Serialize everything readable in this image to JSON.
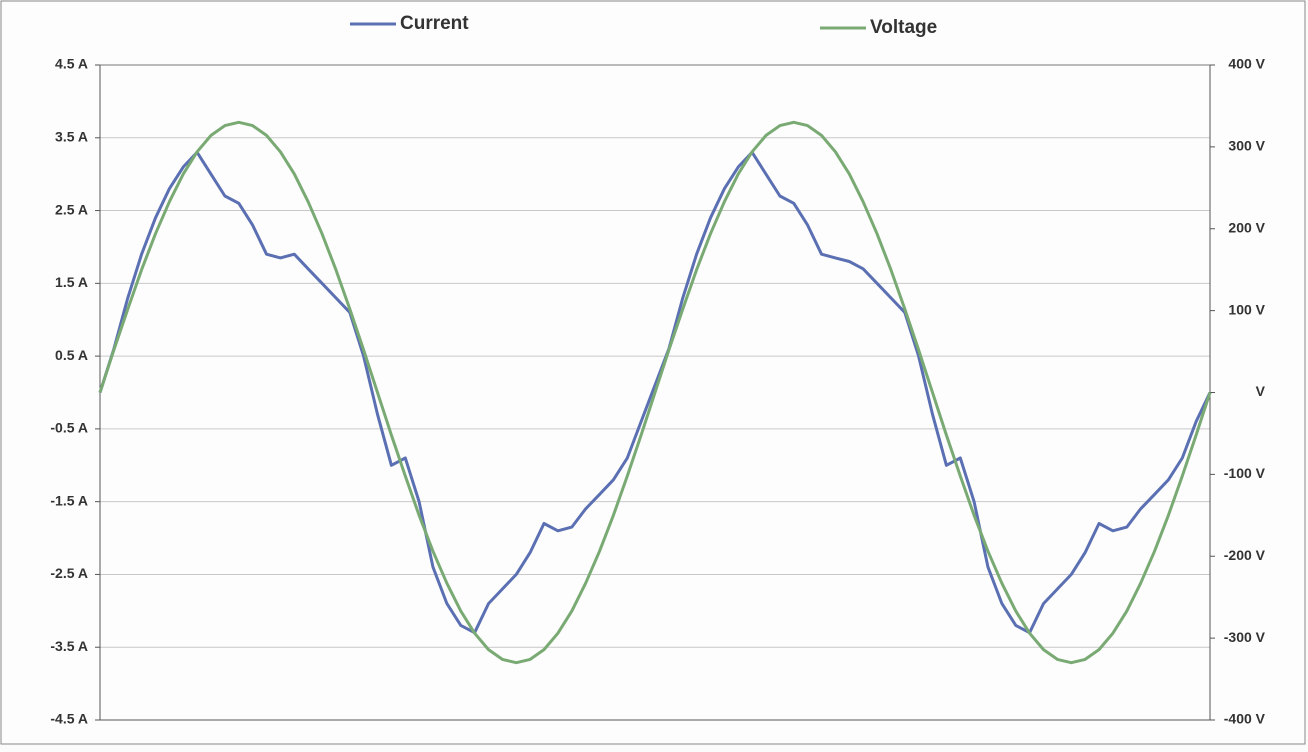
{
  "chart_data": {
    "type": "line",
    "categories": [
      null,
      null,
      null,
      null,
      null,
      null,
      null,
      null,
      null,
      null,
      null,
      null,
      null,
      null,
      null,
      null,
      null,
      null,
      null,
      null,
      null,
      null,
      null,
      null,
      null,
      null,
      null,
      null,
      null,
      null,
      null,
      null,
      null,
      null,
      null,
      null,
      null,
      null,
      null,
      null,
      null,
      null,
      null,
      null,
      null,
      null,
      null,
      null,
      null,
      null,
      null,
      null,
      null,
      null,
      null,
      null,
      null,
      null,
      null,
      null,
      null,
      null,
      null,
      null,
      null,
      null,
      null,
      null,
      null,
      null,
      null,
      null,
      null,
      null,
      null,
      null,
      null,
      null,
      null,
      null,
      null
    ],
    "series": [
      {
        "name": "Current",
        "color": "#5b6fb3",
        "axis": "y",
        "values": [
          0,
          0.6,
          1.3,
          1.9,
          2.4,
          2.8,
          3.1,
          3.3,
          3.0,
          2.7,
          2.6,
          2.3,
          1.9,
          1.85,
          1.9,
          1.7,
          1.5,
          1.3,
          1.1,
          0.5,
          -0.3,
          -1.0,
          -0.9,
          -1.5,
          -2.4,
          -2.9,
          -3.2,
          -3.3,
          -2.9,
          -2.7,
          -2.5,
          -2.2,
          -1.8,
          -1.9,
          -1.85,
          -1.6,
          -1.4,
          -1.2,
          -0.9,
          -0.4,
          0.1,
          0.6,
          1.3,
          1.9,
          2.4,
          2.8,
          3.1,
          3.3,
          3.0,
          2.7,
          2.6,
          2.3,
          1.9,
          1.85,
          1.8,
          1.7,
          1.5,
          1.3,
          1.1,
          0.5,
          -0.3,
          -1.0,
          -0.9,
          -1.5,
          -2.4,
          -2.9,
          -3.2,
          -3.3,
          -2.9,
          -2.7,
          -2.5,
          -2.2,
          -1.8,
          -1.9,
          -1.85,
          -1.6,
          -1.4,
          -1.2,
          -0.9,
          -0.4,
          0
        ]
      },
      {
        "name": "Voltage",
        "color": "#7aaa74",
        "axis": "y2",
        "values": [
          0,
          52,
          102,
          150,
          194,
          233,
          267,
          294,
          314,
          326,
          330,
          326,
          314,
          294,
          267,
          233,
          194,
          150,
          102,
          52,
          0,
          -52,
          -102,
          -150,
          -194,
          -233,
          -267,
          -294,
          -314,
          -326,
          -330,
          -326,
          -314,
          -294,
          -267,
          -233,
          -194,
          -150,
          -102,
          -52,
          0,
          52,
          102,
          150,
          194,
          233,
          267,
          294,
          314,
          326,
          330,
          326,
          314,
          294,
          267,
          233,
          194,
          150,
          102,
          52,
          0,
          -52,
          -102,
          -150,
          -194,
          -233,
          -267,
          -294,
          -314,
          -326,
          -330,
          -326,
          -314,
          -294,
          -267,
          -233,
          -194,
          -150,
          -102,
          -52,
          0
        ]
      }
    ],
    "ylim": [
      -4.5,
      4.5
    ],
    "yticks": [
      {
        "value": 4.5,
        "label": "4.5 A"
      },
      {
        "value": 3.5,
        "label": "3.5 A"
      },
      {
        "value": 2.5,
        "label": "2.5 A"
      },
      {
        "value": 1.5,
        "label": "1.5 A"
      },
      {
        "value": 0.5,
        "label": "0.5 A"
      },
      {
        "value": -0.5,
        "label": "-0.5 A"
      },
      {
        "value": -1.5,
        "label": "-1.5 A"
      },
      {
        "value": -2.5,
        "label": "-2.5 A"
      },
      {
        "value": -3.5,
        "label": "-3.5 A"
      },
      {
        "value": -4.5,
        "label": "-4.5 A"
      }
    ],
    "y2lim": [
      -400,
      400
    ],
    "y2ticks": [
      {
        "value": 400,
        "label": "400 V"
      },
      {
        "value": 300,
        "label": "300 V"
      },
      {
        "value": 200,
        "label": "200 V"
      },
      {
        "value": 100,
        "label": "100 V"
      },
      {
        "value": 0,
        "label": "V"
      },
      {
        "value": -100,
        "label": "-100 V"
      },
      {
        "value": -200,
        "label": "-200 V"
      },
      {
        "value": -300,
        "label": "-300 V"
      },
      {
        "value": -400,
        "label": "-400 V"
      }
    ],
    "grid": true
  }
}
